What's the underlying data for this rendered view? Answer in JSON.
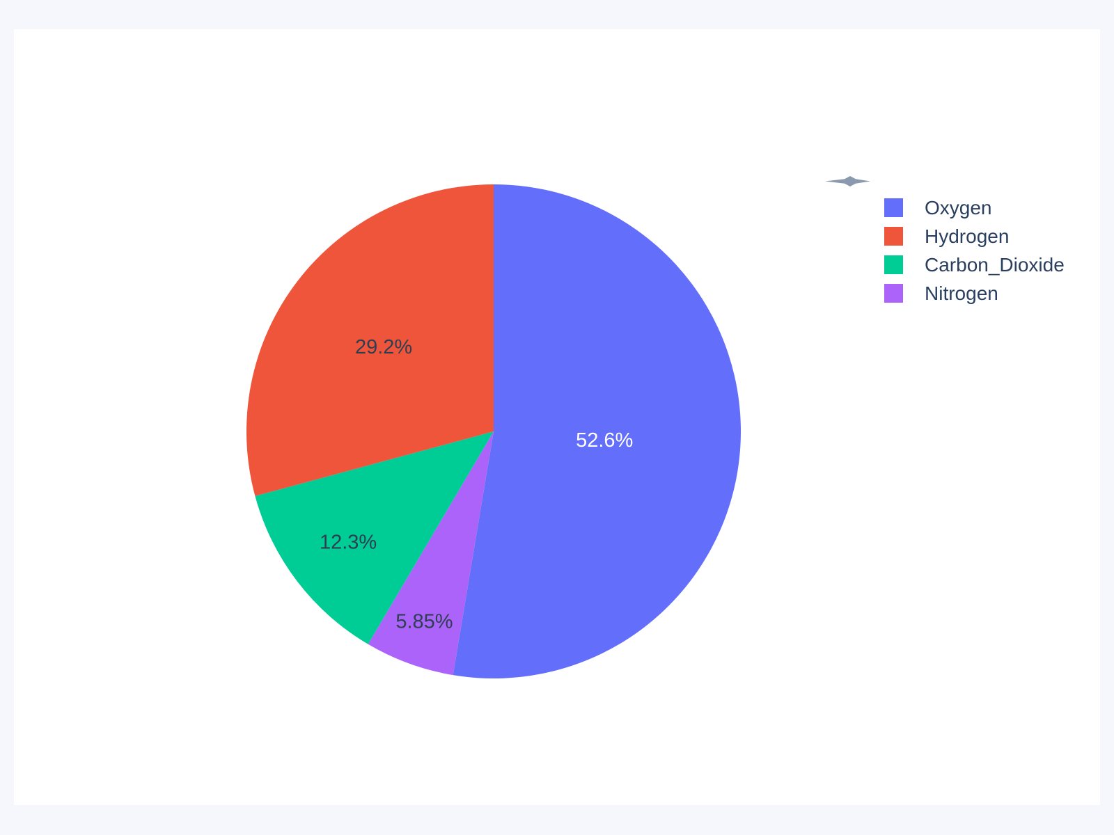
{
  "page": {
    "background_color": "#f6f7fc",
    "card_background_color": "#ffffff"
  },
  "chart_data": {
    "type": "pie",
    "title": "",
    "labels": [
      "Oxygen",
      "Hydrogen",
      "Carbon_Dioxide",
      "Nitrogen"
    ],
    "values": [
      52.6,
      29.2,
      12.3,
      5.85
    ],
    "value_labels": [
      "52.6%",
      "29.2%",
      "12.3%",
      "5.85%"
    ],
    "colors": [
      "#636EFA",
      "#EF553B",
      "#00CC96",
      "#AB63FA"
    ],
    "inside_text_colors": [
      "#FFFFFF",
      "#2f3f52",
      "#2f3f52",
      "#2f3f52"
    ],
    "legend_position": "right",
    "legend_text_color": "#2a3f5f",
    "start_angle_deg": 0,
    "first_slice_direction": "clockwise",
    "decoration_color": "#8a99ad"
  }
}
